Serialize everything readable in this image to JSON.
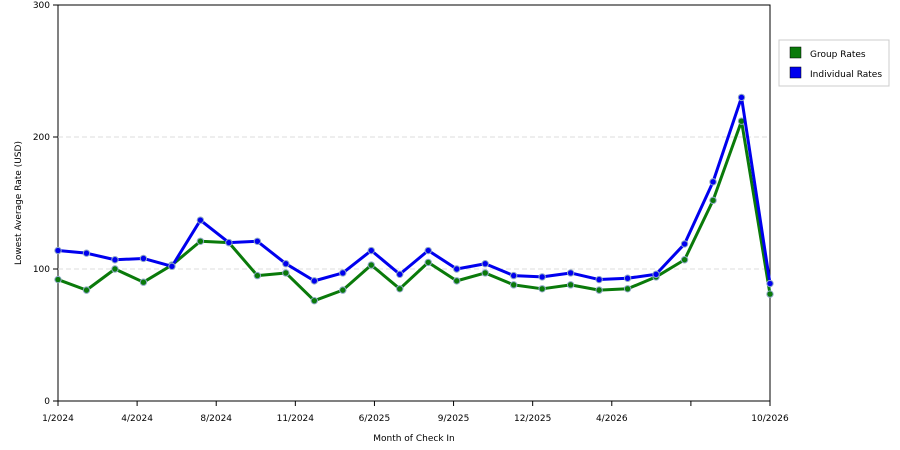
{
  "chart_data": {
    "type": "line",
    "xlabel": "Month of Check In",
    "ylabel": "Lowest Average Rate (USD)",
    "ylim": [
      0,
      300
    ],
    "yticks": [
      0,
      100,
      200,
      300
    ],
    "grid": "horizontal dashed",
    "legend_position": "right",
    "x_tick_labels": [
      "1/2024",
      "4/2024",
      "8/2024",
      "11/2024",
      "6/2025",
      "9/2025",
      "12/2025",
      "4/2026",
      "",
      "10/2026"
    ],
    "series": [
      {
        "name": "Group Rates",
        "color": "#0a7a0a",
        "values": [
          92,
          84,
          100,
          90,
          103,
          121,
          120,
          95,
          97,
          76,
          84,
          103,
          85,
          105,
          91,
          97,
          88,
          85,
          88,
          84,
          85,
          94,
          107,
          152,
          212,
          81
        ]
      },
      {
        "name": "Individual Rates",
        "color": "#0000ee",
        "values": [
          114,
          112,
          107,
          108,
          102,
          137,
          120,
          121,
          104,
          91,
          97,
          114,
          96,
          114,
          100,
          104,
          95,
          94,
          97,
          92,
          93,
          96,
          119,
          166,
          230,
          89
        ]
      }
    ]
  }
}
